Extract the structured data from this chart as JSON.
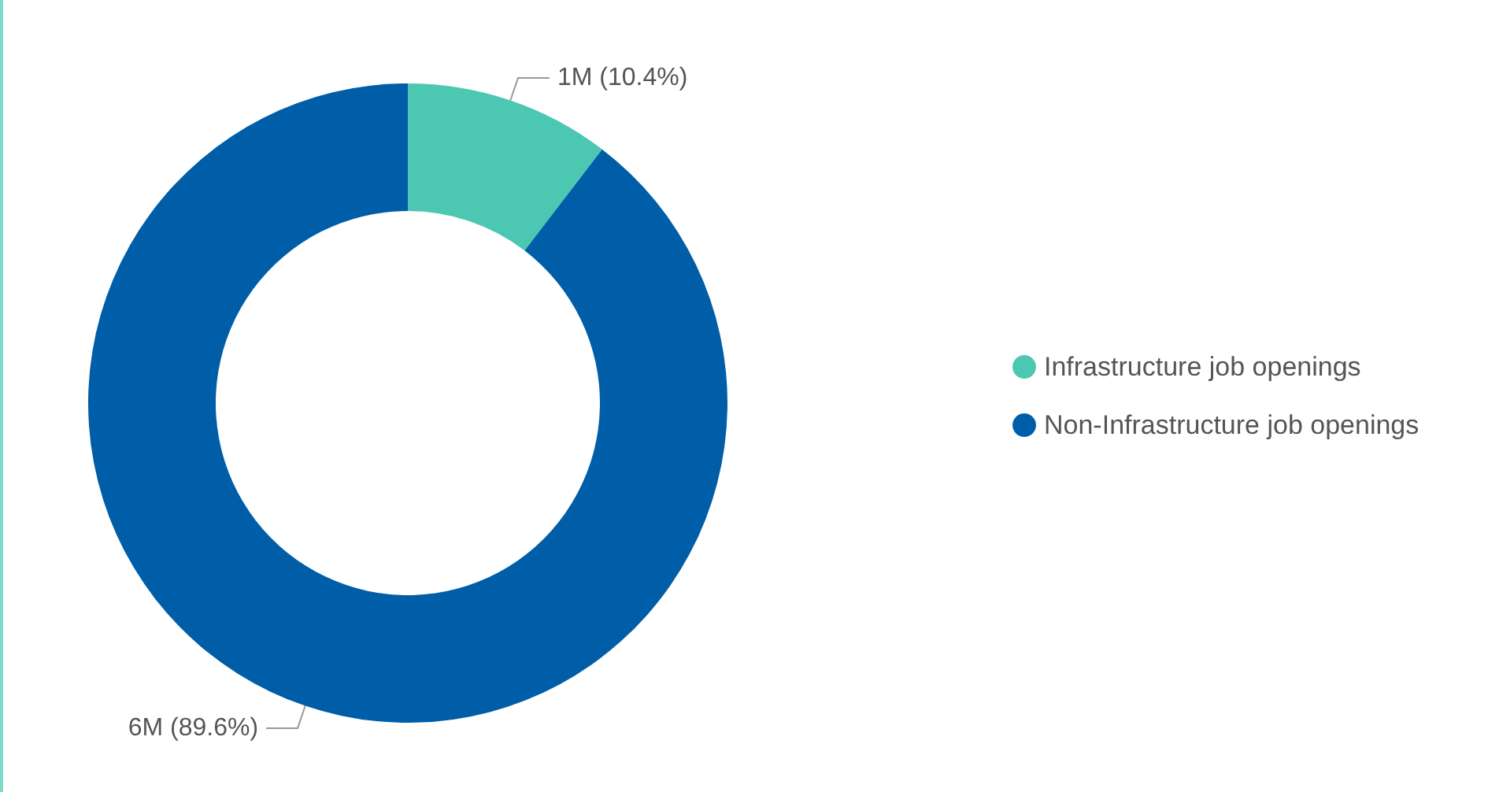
{
  "chart_data": {
    "type": "donut",
    "categories": [
      "Infrastructure job openings",
      "Non-Infrastructure job openings"
    ],
    "values": [
      10.4,
      89.6
    ],
    "colors": [
      "#4cc8b2",
      "#005ea8"
    ],
    "value_labels": [
      "1M (10.4%)",
      "6M (89.6%)"
    ],
    "legend": "right"
  }
}
